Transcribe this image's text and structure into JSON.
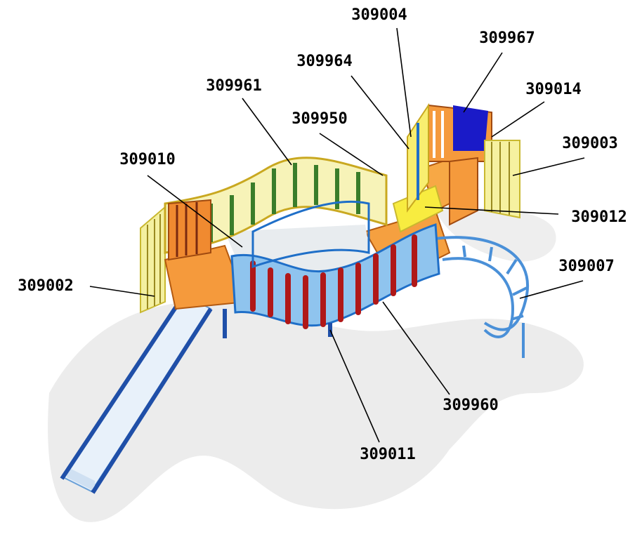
{
  "labels": [
    "309004",
    "309967",
    "309964",
    "309014",
    "309961",
    "309950",
    "309003",
    "309010",
    "309012",
    "309007",
    "309002",
    "309960",
    "309011"
  ]
}
